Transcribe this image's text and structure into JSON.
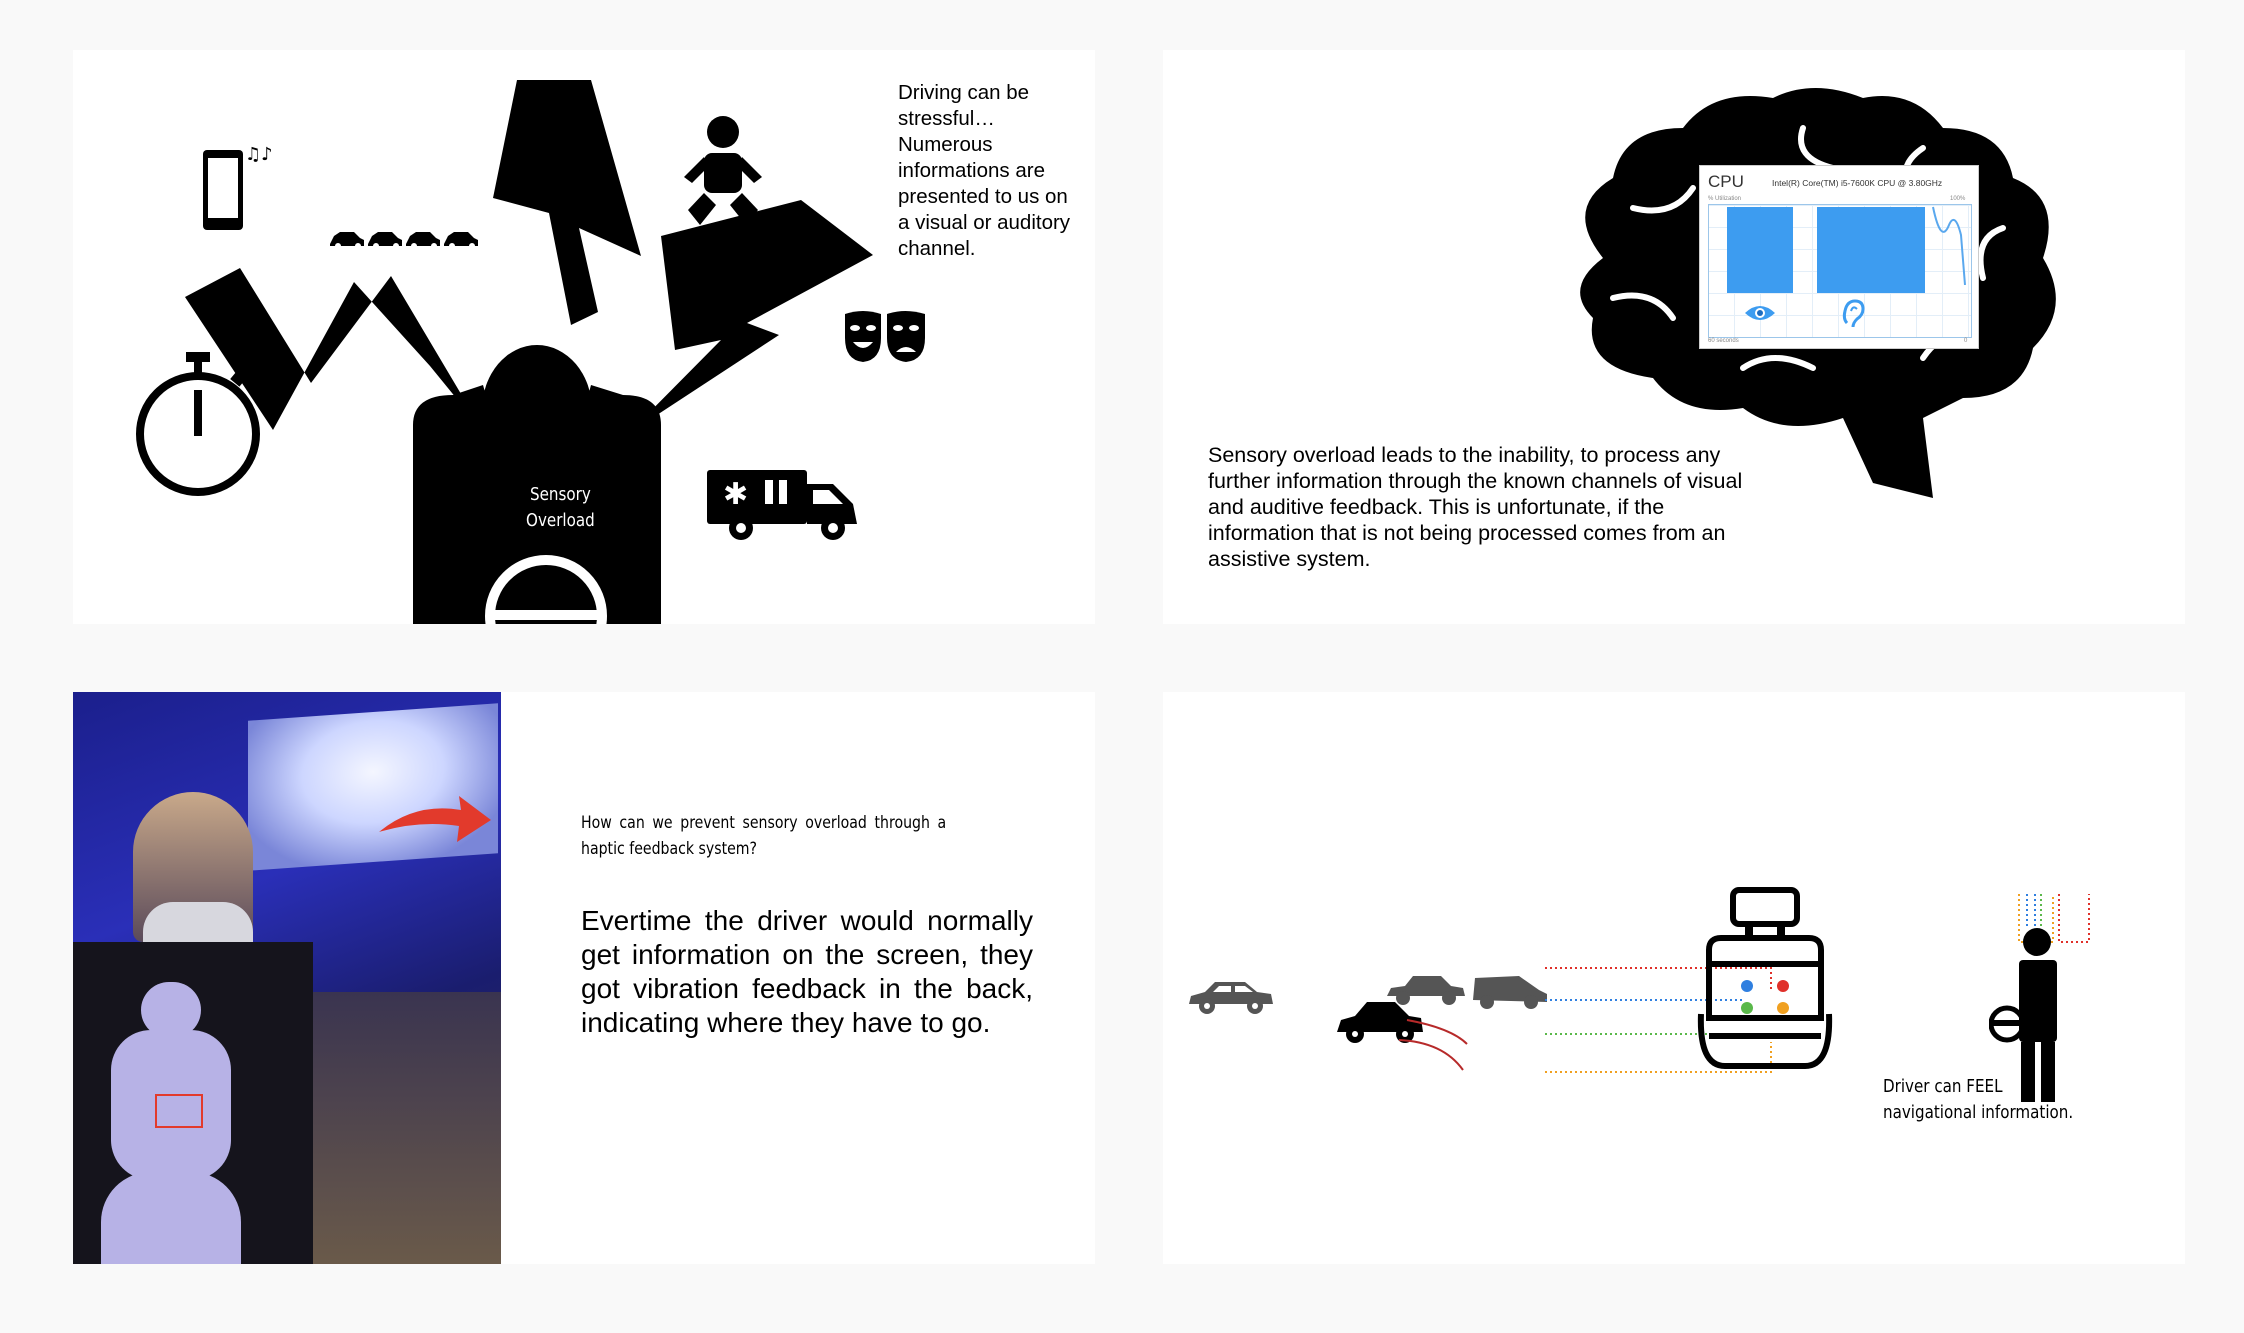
{
  "slide1": {
    "intro_text": "Driving can be stressful… Numerous informations are presented to us on a visual or auditory channel.",
    "head_label_line1": "Sensory",
    "head_label_line2": "Overload"
  },
  "slide2": {
    "cpu_title": "CPU",
    "cpu_model": "Intel(R) Core(TM) i5-7600K CPU @ 3.80GHz",
    "cpu_util_label": "% Utilization",
    "cpu_max_label": "100%",
    "cpu_time_label": "60 seconds",
    "cpu_zero_label": "0",
    "body_text": "Sensory overload leads to the inability, to process any further information through the known channels of visual and auditive feedback. This is unfortunate, if the information that is not being processed comes from an assistive system."
  },
  "slide3": {
    "question": "How can we prevent sensory overload through a haptic feedback system?",
    "answer": "Evertime the driver would normally get information on the screen, they got vibration feedback in the back, indicating where they have to go."
  },
  "slide4": {
    "caption_line1": "Driver can FEEL",
    "caption_line2": "navigational information."
  },
  "colors": {
    "cpu_bar": "#3d9cf0",
    "red_arrow": "#e23a2c",
    "dot_blue": "#2f7fe0",
    "dot_red": "#e0302a",
    "dot_green": "#5ab84a",
    "dot_orange": "#f0a020"
  }
}
